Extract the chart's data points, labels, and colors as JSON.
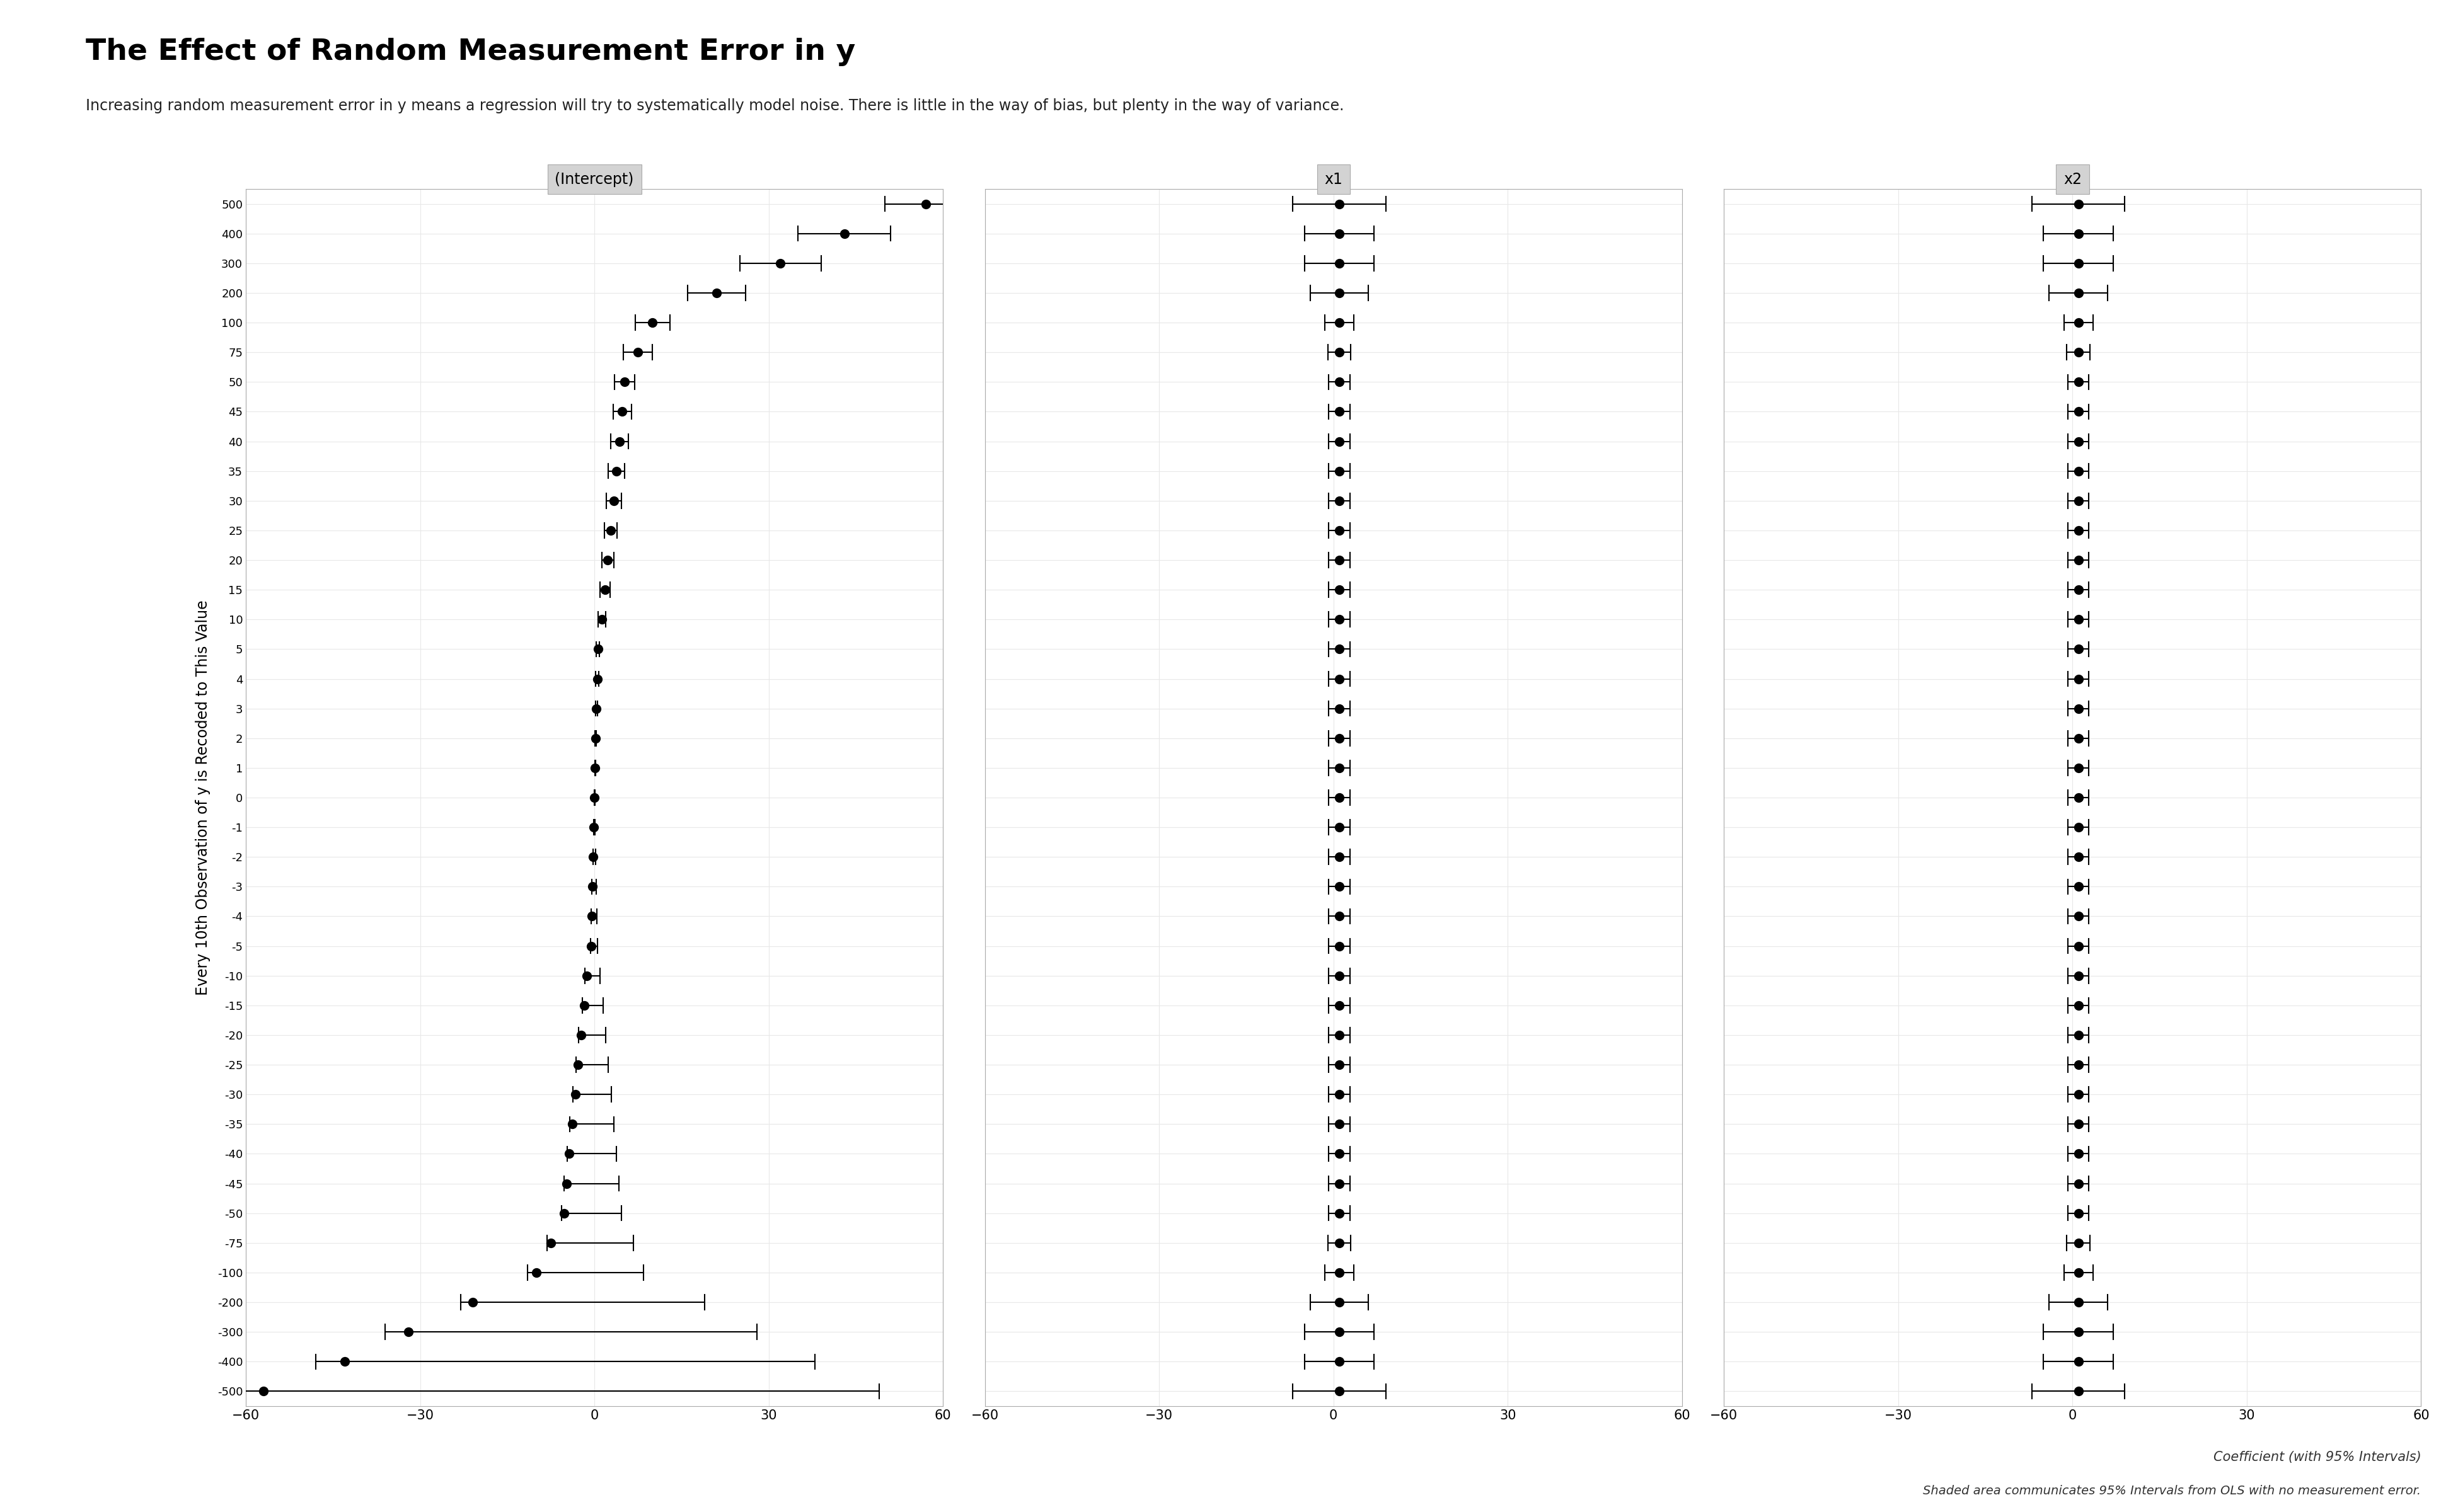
{
  "title": "The Effect of Random Measurement Error in y",
  "subtitle": "Increasing random measurement error in y means a regression will try to systematically model noise. There is little in the way of bias, but plenty in the way of variance.",
  "footer1": "Coefficient (with 95% Intervals)",
  "footer2": "Shaded area communicates 95% Intervals from OLS with no measurement error.",
  "panels": [
    "(Intercept)",
    "x1",
    "x2"
  ],
  "ylabel": "Every 10th Observation of y is Recoded to This Value",
  "y_labels": [
    "500",
    "400",
    "300",
    "200",
    "100",
    "75",
    "50",
    "45",
    "40",
    "35",
    "30",
    "25",
    "20",
    "15",
    "10",
    "5",
    "4",
    "3",
    "2",
    "1",
    "0",
    "-1",
    "-2",
    "-3",
    "-4",
    "-5",
    "-10",
    "-15",
    "-20",
    "-25",
    "-30",
    "-35",
    "-40",
    "-45",
    "-50",
    "-75",
    "-100",
    "-200",
    "-300",
    "-400",
    "-500"
  ],
  "xlim": [
    -60,
    60
  ],
  "xticks": [
    -60,
    -30,
    0,
    30,
    60
  ],
  "background_color": "#ffffff",
  "panel_header_color": "#d3d3d3",
  "grid_color": "#e8e8e8",
  "point_color": "#000000",
  "point_size": 10,
  "intercept_coefs": [
    57,
    43,
    32,
    21,
    10,
    7.5,
    5.2,
    4.8,
    4.3,
    3.8,
    3.3,
    2.8,
    2.3,
    1.8,
    1.3,
    0.6,
    0.5,
    0.35,
    0.2,
    0.1,
    0.0,
    -0.1,
    -0.2,
    -0.35,
    -0.5,
    -0.6,
    -1.3,
    -1.8,
    -2.3,
    -2.8,
    -3.3,
    -3.8,
    -4.3,
    -4.8,
    -5.2,
    -7.5,
    -10,
    -21,
    -32,
    -43,
    -57
  ],
  "intercept_lo": [
    50,
    35,
    25,
    16,
    7,
    5,
    3.5,
    3.2,
    2.8,
    2.4,
    2.0,
    1.7,
    1.3,
    0.95,
    0.65,
    0.3,
    0.25,
    0.15,
    0.1,
    0.05,
    -0.05,
    -0.15,
    -0.25,
    -0.4,
    -0.55,
    -0.7,
    -1.6,
    -2.1,
    -2.7,
    -3.2,
    -3.7,
    -4.2,
    -4.7,
    -5.2,
    -5.7,
    -8.2,
    -11.5,
    -23,
    -36,
    -48,
    -65
  ],
  "intercept_hi": [
    65,
    51,
    39,
    26,
    13,
    10,
    6.9,
    6.4,
    5.8,
    5.2,
    4.6,
    3.9,
    3.3,
    2.65,
    1.95,
    0.9,
    0.75,
    0.55,
    0.3,
    0.15,
    0.05,
    0.05,
    0.15,
    0.3,
    0.45,
    0.5,
    1.0,
    1.5,
    1.97,
    2.42,
    2.87,
    3.32,
    3.77,
    4.22,
    4.7,
    6.7,
    8.5,
    19,
    28,
    38,
    49
  ],
  "x1_coefs": [
    1.0,
    1.0,
    1.0,
    1.0,
    1.0,
    1.0,
    1.0,
    1.0,
    1.0,
    1.0,
    1.0,
    1.0,
    1.0,
    1.0,
    1.0,
    1.0,
    1.0,
    1.0,
    1.0,
    1.0,
    1.0,
    1.0,
    1.0,
    1.0,
    1.0,
    1.0,
    1.0,
    1.0,
    1.0,
    1.0,
    1.0,
    1.0,
    1.0,
    1.0,
    1.0,
    1.0,
    1.0,
    1.0,
    1.0,
    1.0,
    1.0
  ],
  "x1_lo": [
    -7,
    -5,
    -5,
    -4,
    -1.5,
    -1,
    -0.8,
    -0.8,
    -0.8,
    -0.8,
    -0.8,
    -0.8,
    -0.8,
    -0.8,
    -0.8,
    -0.8,
    -0.8,
    -0.8,
    -0.8,
    -0.8,
    -0.8,
    -0.8,
    -0.8,
    -0.8,
    -0.8,
    -0.8,
    -0.8,
    -0.8,
    -0.8,
    -0.8,
    -0.8,
    -0.8,
    -0.8,
    -0.8,
    -0.8,
    -1,
    -1.5,
    -4,
    -5,
    -5,
    -7
  ],
  "x1_hi": [
    9,
    7,
    7,
    6,
    3.5,
    3,
    2.8,
    2.8,
    2.8,
    2.8,
    2.8,
    2.8,
    2.8,
    2.8,
    2.8,
    2.8,
    2.8,
    2.8,
    2.8,
    2.8,
    2.8,
    2.8,
    2.8,
    2.8,
    2.8,
    2.8,
    2.8,
    2.8,
    2.8,
    2.8,
    2.8,
    2.8,
    2.8,
    2.8,
    2.8,
    3,
    3.5,
    6,
    7,
    7,
    9
  ],
  "x2_coefs": [
    1.0,
    1.0,
    1.0,
    1.0,
    1.0,
    1.0,
    1.0,
    1.0,
    1.0,
    1.0,
    1.0,
    1.0,
    1.0,
    1.0,
    1.0,
    1.0,
    1.0,
    1.0,
    1.0,
    1.0,
    1.0,
    1.0,
    1.0,
    1.0,
    1.0,
    1.0,
    1.0,
    1.0,
    1.0,
    1.0,
    1.0,
    1.0,
    1.0,
    1.0,
    1.0,
    1.0,
    1.0,
    1.0,
    1.0,
    1.0,
    1.0
  ],
  "x2_lo": [
    -7,
    -5,
    -5,
    -4,
    -1.5,
    -1,
    -0.8,
    -0.8,
    -0.8,
    -0.8,
    -0.8,
    -0.8,
    -0.8,
    -0.8,
    -0.8,
    -0.8,
    -0.8,
    -0.8,
    -0.8,
    -0.8,
    -0.8,
    -0.8,
    -0.8,
    -0.8,
    -0.8,
    -0.8,
    -0.8,
    -0.8,
    -0.8,
    -0.8,
    -0.8,
    -0.8,
    -0.8,
    -0.8,
    -0.8,
    -1,
    -1.5,
    -4,
    -5,
    -5,
    -7
  ],
  "x2_hi": [
    9,
    7,
    7,
    6,
    3.5,
    3,
    2.8,
    2.8,
    2.8,
    2.8,
    2.8,
    2.8,
    2.8,
    2.8,
    2.8,
    2.8,
    2.8,
    2.8,
    2.8,
    2.8,
    2.8,
    2.8,
    2.8,
    2.8,
    2.8,
    2.8,
    2.8,
    2.8,
    2.8,
    2.8,
    2.8,
    2.8,
    2.8,
    2.8,
    2.8,
    3,
    3.5,
    6,
    7,
    7,
    9
  ]
}
